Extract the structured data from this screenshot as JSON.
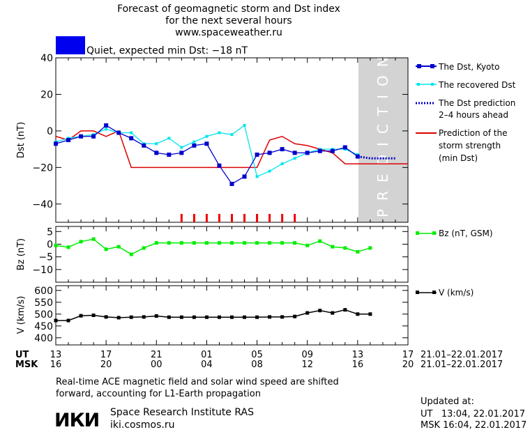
{
  "header": {
    "title_line1": "Forecast of geomagnetic storm and Dst index",
    "title_line2": "for the next several hours",
    "site": "www.spaceweather.ru"
  },
  "status": {
    "color": "#0000ee",
    "text": "Quiet, expected min Dst: −18 nT"
  },
  "prediction_band_text": "PREDICTION",
  "time_axis": {
    "ut_label": "UT",
    "msk_label": "MSK",
    "ut_ticks": [
      "13",
      "17",
      "21",
      "01",
      "05",
      "09",
      "13",
      "17"
    ],
    "msk_ticks": [
      "16",
      "20",
      "00",
      "04",
      "08",
      "12",
      "16",
      "20"
    ],
    "ut_range": "21.01–22.01.2017",
    "msk_range": "21.01–22.01.2017"
  },
  "footer": {
    "note_line1": "Real-time ACE magnetic field and solar wind speed are shifted",
    "note_line2": "forward, accounting for L1-Earth propagation",
    "logo_text": "ИКИ",
    "institute": "Space Research Institute RAS",
    "institute_url": "iki.cosmos.ru",
    "updated_label": "Updated at:",
    "updated_ut": "UT   13:04, 22.01.2017",
    "updated_msk": "MSK 16:04, 22.01.2017"
  },
  "colors": {
    "dst_kyoto": "#0000cc",
    "recovered": "#00e5ee",
    "prediction_dotted": "#0000cc",
    "storm_strength": "#dd0000",
    "bz": "#00ee00",
    "v": "#000000",
    "band": "#d3d3d3",
    "markers": "#ee0000"
  },
  "chart_data": [
    {
      "type": "line",
      "ylabel": "Dst (nT)",
      "ylim": [
        -50,
        40
      ],
      "yticks": [
        40,
        20,
        0,
        -20,
        -40
      ],
      "x_hours_since_13UT_21Jan": [
        0,
        1,
        2,
        3,
        4,
        5,
        6,
        7,
        8,
        9,
        10,
        11,
        12,
        13,
        14,
        15,
        16,
        17,
        18,
        19,
        20,
        21,
        22,
        23,
        24
      ],
      "prediction_window_hours": [
        24,
        28
      ],
      "legend": [
        "The Dst, Kyoto",
        "The recovered Dst",
        "The Dst prediction",
        "2–4 hours ahead",
        "Prediction of the",
        "storm strength",
        "(min Dst)"
      ],
      "series": [
        {
          "name": "The Dst, Kyoto",
          "values": [
            -7,
            -5,
            -3,
            -3,
            3,
            -1,
            -4,
            -8,
            -12,
            -13,
            -12,
            -8,
            -7,
            -19,
            -29,
            -25,
            -13,
            -12,
            -10,
            -12,
            -12,
            -11,
            -11,
            -9,
            -14
          ]
        },
        {
          "name": "The recovered Dst",
          "values": [
            -6,
            -4,
            -3,
            -2,
            1,
            -1,
            -1,
            -7,
            -7,
            -4,
            -9,
            -6,
            -3,
            -1,
            -2,
            3,
            -25,
            -22,
            -18,
            -15,
            -12,
            -10,
            -10,
            -10,
            -13
          ]
        },
        {
          "name": "The Dst prediction 2–4 hours ahead",
          "x": [
            24,
            25,
            26,
            27
          ],
          "values": [
            -14,
            -15,
            -15,
            -15
          ]
        },
        {
          "name": "Prediction of the storm strength (min Dst)",
          "x": [
            0,
            1,
            2,
            3,
            4,
            5,
            6,
            7,
            8,
            9,
            10,
            11,
            12,
            13,
            14,
            15,
            16,
            17,
            18,
            19,
            20,
            21,
            22,
            23,
            24,
            25,
            26,
            27,
            28
          ],
          "values": [
            -3,
            -5,
            0,
            0,
            -3,
            0,
            -20,
            -20,
            -20,
            -20,
            -20,
            -20,
            -20,
            -20,
            -20,
            -20,
            -20,
            -5,
            -3,
            -7,
            -8,
            -10,
            -12,
            -18,
            -18,
            -18,
            -18,
            -18,
            -18
          ]
        }
      ],
      "storm_markers_hours": [
        10,
        11,
        12,
        13,
        14,
        15,
        16,
        17,
        18,
        19
      ]
    },
    {
      "type": "line",
      "ylabel": "Bz (nT)",
      "ylim": [
        -15,
        7
      ],
      "yticks": [
        5,
        0,
        -5,
        -10
      ],
      "legend": [
        "Bz (nT, GSM)"
      ],
      "series": [
        {
          "name": "Bz (nT, GSM)",
          "x": [
            0,
            1,
            2,
            3,
            4,
            5,
            6,
            7,
            8,
            9,
            10,
            11,
            12,
            13,
            14,
            15,
            16,
            17,
            18,
            19,
            20,
            21,
            22,
            23,
            24,
            25
          ],
          "values": [
            -0.5,
            -1.2,
            1,
            2,
            -2,
            -1,
            -4,
            -1.5,
            0.5,
            0.5,
            0.5,
            0.5,
            0.5,
            0.5,
            0.5,
            0.5,
            0.5,
            0.5,
            0.5,
            0.5,
            -0.5,
            1.2,
            -1,
            -1.5,
            -3,
            -1.5
          ]
        }
      ]
    },
    {
      "type": "line",
      "ylabel": "V (km/s)",
      "ylim": [
        370,
        620
      ],
      "yticks": [
        600,
        550,
        500,
        450,
        400
      ],
      "legend": [
        "V (km/s)"
      ],
      "series": [
        {
          "name": "V (km/s)",
          "x": [
            0,
            1,
            2,
            3,
            4,
            5,
            6,
            7,
            8,
            9,
            10,
            11,
            12,
            13,
            14,
            15,
            16,
            17,
            18,
            19,
            20,
            21,
            22,
            23,
            24,
            25
          ],
          "values": [
            473,
            473,
            493,
            495,
            488,
            485,
            487,
            488,
            492,
            487,
            487,
            487,
            487,
            487,
            487,
            487,
            487,
            488,
            488,
            490,
            505,
            515,
            505,
            518,
            500,
            500
          ]
        }
      ]
    }
  ]
}
